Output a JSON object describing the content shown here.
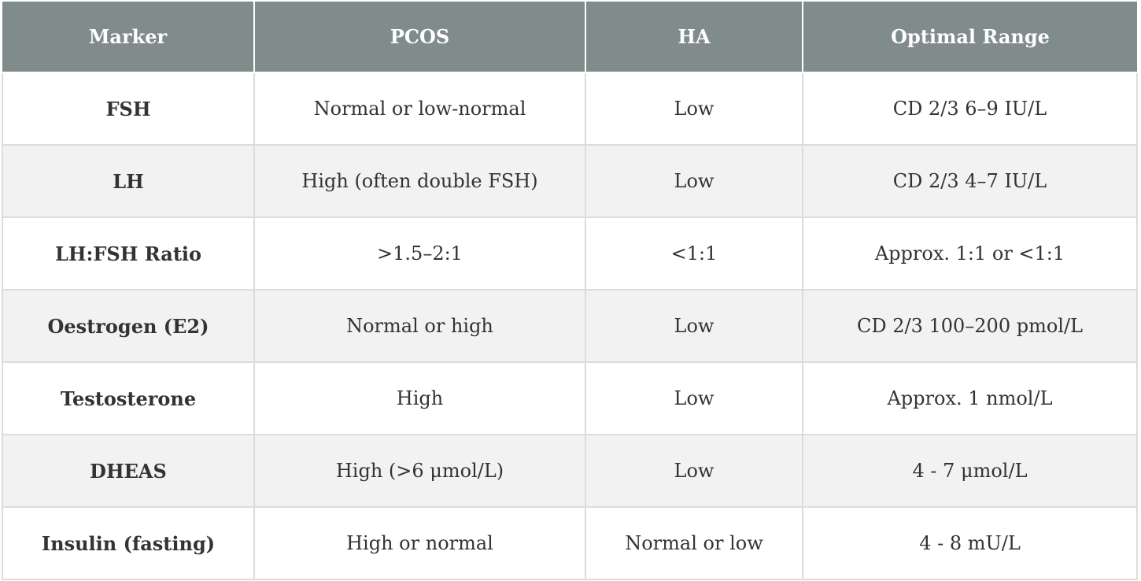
{
  "table": {
    "headers": [
      "Marker",
      "PCOS",
      "HA",
      "Optimal Range"
    ],
    "rows": [
      [
        "FSH",
        "Normal or low-normal",
        "Low",
        "CD 2/3 6–9 IU/L"
      ],
      [
        "LH",
        "High (often double FSH)",
        "Low",
        "CD 2/3 4–7 IU/L"
      ],
      [
        "LH:FSH Ratio",
        ">1.5–2:1",
        "<1:1",
        "Approx. 1:1 or <1:1"
      ],
      [
        "Oestrogen (E2)",
        "Normal or high",
        "Low",
        "CD 2/3 100–200 pmol/L"
      ],
      [
        "Testosterone",
        "High",
        "Low",
        "Approx. 1 nmol/L"
      ],
      [
        "DHEAS",
        "High (>6 μmol/L)",
        "Low",
        "4 - 7 μmol/L"
      ],
      [
        "Insulin (fasting)",
        "High or normal",
        "Normal or low",
        "4 - 8 mU/L"
      ]
    ]
  },
  "colors": {
    "header_bg": "#7f8c8b",
    "header_text": "#ffffff",
    "row_alt_bg": "#f2f2f2",
    "border": "#dcdcdc",
    "body_text": "#333333"
  }
}
